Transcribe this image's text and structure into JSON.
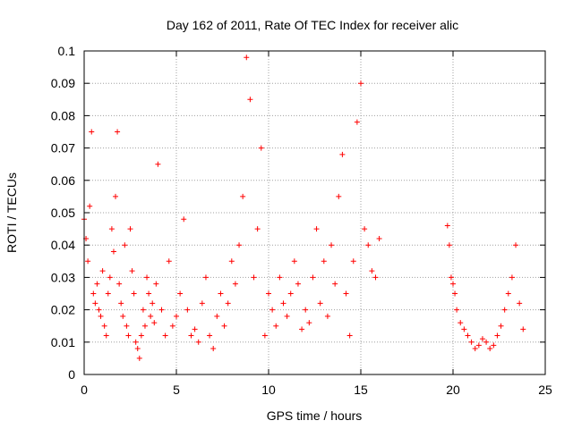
{
  "chart_data": {
    "type": "scatter",
    "title": "Day 162 of 2011, Rate Of TEC Index for receiver alic",
    "xlabel": "GPS time / hours",
    "ylabel": "ROTI / TECUs",
    "xlim": [
      0,
      25
    ],
    "ylim": [
      0,
      0.1
    ],
    "xticks": [
      "0",
      "5",
      "10",
      "15",
      "20",
      "25"
    ],
    "yticks": [
      "0",
      "0.01",
      "0.02",
      "0.03",
      "0.04",
      "0.05",
      "0.06",
      "0.07",
      "0.08",
      "0.09",
      "0.1"
    ],
    "grid": true,
    "marker": "plus",
    "color": "#ff0000",
    "series": [
      {
        "x": [
          0.0,
          0.1,
          0.2,
          0.3,
          0.4,
          0.5,
          0.6,
          0.7,
          0.8,
          0.9,
          1.0,
          1.1,
          1.2,
          1.3,
          1.4,
          1.5,
          1.6,
          1.7,
          1.8,
          1.9,
          2.0,
          2.1,
          2.2,
          2.3,
          2.4,
          2.5,
          2.6,
          2.7,
          2.8,
          2.9,
          3.0,
          3.1,
          3.2,
          3.3,
          3.4,
          3.5,
          3.6,
          3.7,
          3.8,
          3.9,
          4.0,
          4.2,
          4.4,
          4.6,
          4.8,
          5.0,
          5.2,
          5.4,
          5.6,
          5.8,
          6.0,
          6.2,
          6.4,
          6.6,
          6.8,
          7.0,
          7.2,
          7.4,
          7.6,
          7.8,
          8.0,
          8.2,
          8.4,
          8.6,
          8.8,
          9.0,
          9.2,
          9.4,
          9.6,
          9.8,
          10.0,
          10.2,
          10.4,
          10.6,
          10.8,
          11.0,
          11.2,
          11.4,
          11.6,
          11.8,
          12.0,
          12.2,
          12.4,
          12.6,
          12.8,
          13.0,
          13.2,
          13.4,
          13.6,
          13.8,
          14.0,
          14.2,
          14.4,
          14.6,
          14.8,
          15.0,
          15.2,
          15.4,
          15.6,
          15.8,
          16.0,
          19.7,
          19.8,
          19.9,
          20.0,
          20.1,
          20.2,
          20.4,
          20.6,
          20.8,
          21.0,
          21.2,
          21.4,
          21.6,
          21.8,
          22.0,
          22.2,
          22.4,
          22.6,
          22.8,
          23.0,
          23.2,
          23.4,
          23.6,
          23.8
        ],
        "y": [
          0.048,
          0.042,
          0.035,
          0.052,
          0.075,
          0.025,
          0.022,
          0.028,
          0.02,
          0.018,
          0.032,
          0.015,
          0.012,
          0.025,
          0.03,
          0.045,
          0.038,
          0.055,
          0.075,
          0.028,
          0.022,
          0.018,
          0.04,
          0.015,
          0.012,
          0.045,
          0.032,
          0.025,
          0.01,
          0.008,
          0.005,
          0.012,
          0.02,
          0.015,
          0.03,
          0.025,
          0.018,
          0.022,
          0.016,
          0.028,
          0.065,
          0.02,
          0.012,
          0.035,
          0.015,
          0.018,
          0.025,
          0.048,
          0.02,
          0.012,
          0.014,
          0.01,
          0.022,
          0.03,
          0.012,
          0.008,
          0.018,
          0.025,
          0.015,
          0.022,
          0.035,
          0.028,
          0.04,
          0.055,
          0.098,
          0.085,
          0.03,
          0.045,
          0.07,
          0.012,
          0.025,
          0.02,
          0.015,
          0.03,
          0.022,
          0.018,
          0.025,
          0.035,
          0.028,
          0.014,
          0.02,
          0.016,
          0.03,
          0.045,
          0.022,
          0.035,
          0.018,
          0.04,
          0.028,
          0.055,
          0.068,
          0.025,
          0.012,
          0.035,
          0.078,
          0.09,
          0.045,
          0.04,
          0.032,
          0.03,
          0.042,
          0.046,
          0.04,
          0.03,
          0.028,
          0.025,
          0.02,
          0.016,
          0.014,
          0.012,
          0.01,
          0.008,
          0.009,
          0.011,
          0.01,
          0.008,
          0.009,
          0.012,
          0.015,
          0.02,
          0.025,
          0.03,
          0.04,
          0.022,
          0.014
        ]
      }
    ]
  }
}
